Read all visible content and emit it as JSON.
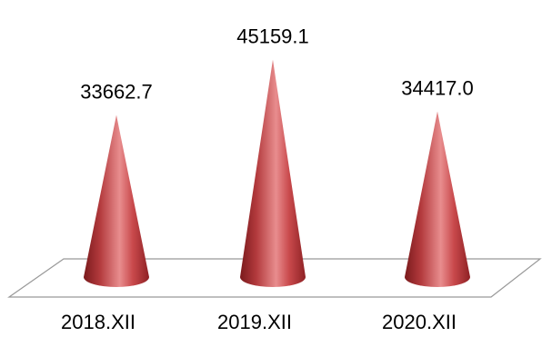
{
  "chart_data": {
    "type": "bar",
    "shape": "cone",
    "categories": [
      "2018.XII",
      "2019.XII",
      "2020.XII"
    ],
    "values": [
      33662.7,
      45159.1,
      34417.0
    ],
    "value_labels": [
      "33662.7",
      "45159.1",
      "34417.0"
    ],
    "title": "",
    "xlabel": "",
    "ylabel": "",
    "ylim": [
      0,
      50000
    ],
    "grid": false,
    "legend": "none",
    "colors": {
      "cone_dark": "#7a1a1c",
      "cone_mid": "#c0474a",
      "cone_light": "#f0a0a0",
      "floor_stroke": "#999999"
    }
  }
}
